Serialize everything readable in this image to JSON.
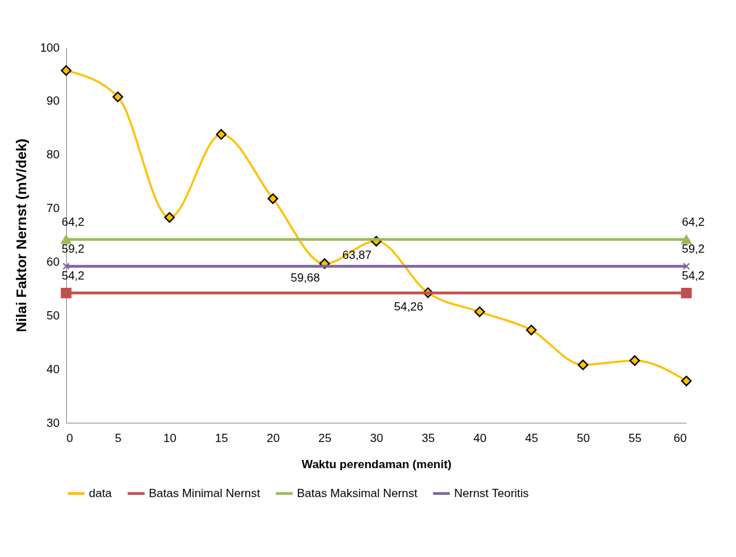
{
  "chart_data": {
    "type": "line",
    "xlabel": "Waktu perendaman (menit)",
    "ylabel": "Nilai Faktor Nernst (mV/dek)",
    "xlim": [
      0,
      60
    ],
    "xticks": [
      0,
      5,
      10,
      15,
      20,
      25,
      30,
      35,
      40,
      45,
      50,
      55,
      60
    ],
    "ylim": [
      30,
      100
    ],
    "yticks": [
      30,
      40,
      50,
      60,
      70,
      80,
      90,
      100
    ],
    "grid": false,
    "legend": "bottom",
    "series": [
      {
        "name": "data",
        "color": "#ffc000",
        "marker": "diamond",
        "x": [
          0,
          5,
          10,
          15,
          20,
          25,
          30,
          35,
          40,
          45,
          50,
          55,
          60
        ],
        "values": [
          95.7,
          90.8,
          68.3,
          83.8,
          71.8,
          59.68,
          63.87,
          54.26,
          50.7,
          47.3,
          40.8,
          41.6,
          37.8
        ],
        "value_labels": [
          null,
          null,
          null,
          null,
          null,
          "59,68",
          "63,87",
          "54,26",
          null,
          null,
          null,
          null,
          null
        ]
      },
      {
        "name": "Batas Minimal Nernst",
        "color": "#c0504d",
        "marker": "square",
        "x": [
          0,
          60
        ],
        "values": [
          54.2,
          54.2
        ],
        "value_labels": [
          "54,2",
          "54,2"
        ]
      },
      {
        "name": "Batas Maksimal Nernst",
        "color": "#9bbb59",
        "marker": "triangle",
        "x": [
          0,
          60
        ],
        "values": [
          64.2,
          64.2
        ],
        "value_labels": [
          "64,2",
          "64,2"
        ]
      },
      {
        "name": "Nernst Teoritis",
        "color": "#8064a2",
        "marker": "cross",
        "x": [
          0,
          60
        ],
        "values": [
          59.2,
          59.2
        ],
        "value_labels": [
          "59,2",
          "59,2"
        ]
      }
    ]
  }
}
